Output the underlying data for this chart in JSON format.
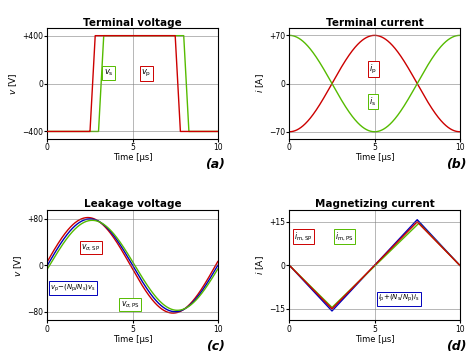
{
  "period": 10,
  "title_a": "Terminal voltage",
  "title_b": "Terminal current",
  "title_c": "Leakage voltage",
  "title_d": "Magnetizing current",
  "xlabel": "Time [μs]",
  "ylabel_a": "$v$ [V]",
  "ylabel_b": "$i$ [A]",
  "ylabel_c": "$v$ [V]",
  "ylabel_d": "$i$ [A]",
  "ylim_a": [
    -460,
    460
  ],
  "ylim_b": [
    -80,
    80
  ],
  "ylim_c": [
    -95,
    95
  ],
  "ylim_d": [
    -19,
    19
  ],
  "yticks_a": [
    -400,
    0,
    400
  ],
  "ytick_labels_a": [
    "−400",
    "0",
    "+400"
  ],
  "yticks_b": [
    -70,
    0,
    70
  ],
  "ytick_labels_b": [
    "−70",
    "0",
    "+70"
  ],
  "yticks_c": [
    -80,
    0,
    80
  ],
  "ytick_labels_c": [
    "−80",
    "0",
    "+80"
  ],
  "yticks_d": [
    -15,
    0,
    15
  ],
  "ytick_labels_d": [
    "−15",
    "0",
    "+15"
  ],
  "color_red": "#cc0000",
  "color_green": "#55bb00",
  "color_blue": "#0000bb",
  "vp_amplitude": 400,
  "vs_amplitude": 400,
  "ip_amplitude": 70,
  "is_amplitude": 70,
  "vleak_amplitude": 80,
  "imag_amplitude": 15,
  "label_a": "(a)",
  "label_b": "(b)",
  "label_c": "(c)",
  "label_d": "(d)",
  "vp_rise": 2.5,
  "vp_fall": 7.5,
  "vs_rise": 3.0,
  "vs_fall": 8.0,
  "trans_time": 0.3
}
